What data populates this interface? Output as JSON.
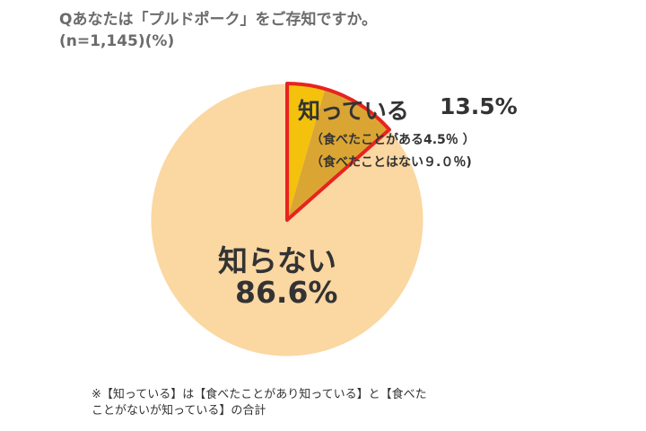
{
  "title": {
    "line1": "Qあなたは「プルドポーク」をご存知ですか。",
    "line2": "(n=1,145)(%)"
  },
  "chart_data": {
    "type": "pie",
    "slices": [
      {
        "label": "知っている",
        "value": 13.5,
        "value_label": "13.5%",
        "color": "#f6c000",
        "breakdown": [
          {
            "label": "食べたことがある",
            "value": 4.5,
            "color": "#f4c20d"
          },
          {
            "label": "食べたことはない",
            "value": 9.0,
            "color": "#dba533"
          }
        ],
        "highlight_outline": "#e8231f"
      },
      {
        "label": "知らない",
        "value": 86.6,
        "value_label": "86.6%",
        "color": "#fbd7a2"
      }
    ],
    "annotations": {
      "known_sub1": "（食べたことがある4.5％ ）",
      "known_sub2": "（食べたことはない９.０％)"
    }
  },
  "footnote": {
    "line1": "※【知っている】は【食べたことがあり知っている】と【食べた",
    "line2": "ことがないが知っている】の合計"
  }
}
